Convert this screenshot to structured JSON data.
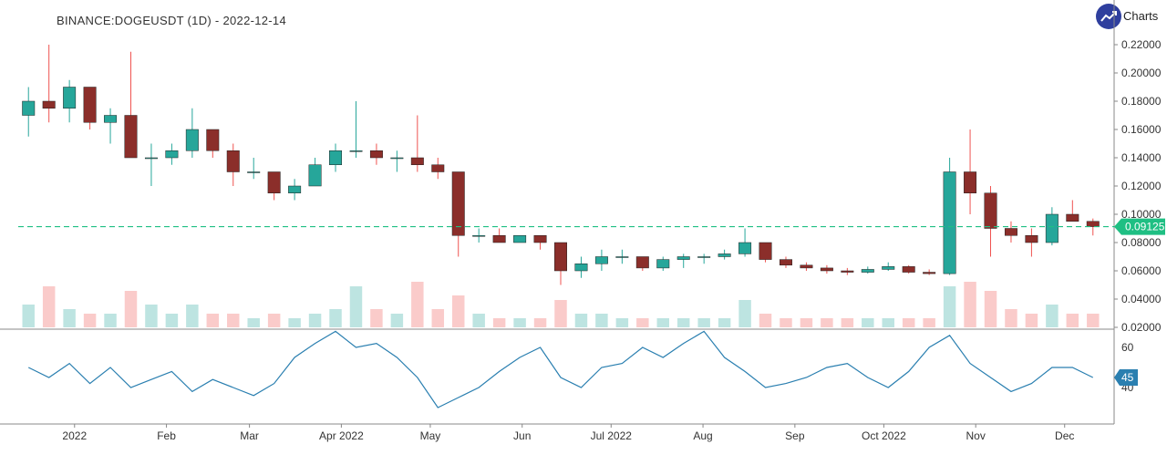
{
  "header": {
    "title": "BINANCE:DOGEUSDT (1D) - 2022-12-14",
    "brand": "Charts",
    "logo_icon": "trend-up-icon"
  },
  "chart_data": {
    "type": "candlestick",
    "symbol": "DOGEUSDT",
    "interval": "1W approx. of 1D",
    "start_date": "2021-12-13",
    "end_date": "2022-12-14",
    "price_ylim": [
      0.02,
      0.23
    ],
    "price_ticks": [
      "0.22000",
      "0.20000",
      "0.18000",
      "0.16000",
      "0.14000",
      "0.12000",
      "0.10000",
      "0.08000",
      "0.06000",
      "0.04000",
      "0.02000"
    ],
    "last_price": 0.09125,
    "last_price_label": "0.09125",
    "colors": {
      "up": "#26a69a",
      "down": "#ef5350",
      "last": "#1fbf83",
      "rsi": "#2a7fb0"
    },
    "candles": [
      [
        0.17,
        0.19,
        0.155,
        0.18
      ],
      [
        0.18,
        0.22,
        0.165,
        0.175
      ],
      [
        0.175,
        0.195,
        0.165,
        0.19
      ],
      [
        0.19,
        0.19,
        0.16,
        0.165
      ],
      [
        0.165,
        0.175,
        0.15,
        0.17
      ],
      [
        0.17,
        0.215,
        0.14,
        0.14
      ],
      [
        0.14,
        0.15,
        0.12,
        0.14
      ],
      [
        0.14,
        0.15,
        0.135,
        0.145
      ],
      [
        0.145,
        0.175,
        0.14,
        0.16
      ],
      [
        0.16,
        0.16,
        0.14,
        0.145
      ],
      [
        0.145,
        0.15,
        0.12,
        0.13
      ],
      [
        0.13,
        0.14,
        0.125,
        0.13
      ],
      [
        0.13,
        0.13,
        0.11,
        0.115
      ],
      [
        0.115,
        0.125,
        0.11,
        0.12
      ],
      [
        0.12,
        0.14,
        0.12,
        0.135
      ],
      [
        0.135,
        0.15,
        0.13,
        0.145
      ],
      [
        0.145,
        0.18,
        0.14,
        0.145
      ],
      [
        0.145,
        0.15,
        0.135,
        0.14
      ],
      [
        0.14,
        0.145,
        0.13,
        0.14
      ],
      [
        0.14,
        0.17,
        0.13,
        0.135
      ],
      [
        0.135,
        0.14,
        0.125,
        0.13
      ],
      [
        0.13,
        0.13,
        0.07,
        0.085
      ],
      [
        0.085,
        0.09,
        0.08,
        0.085
      ],
      [
        0.085,
        0.09,
        0.08,
        0.08
      ],
      [
        0.08,
        0.085,
        0.08,
        0.085
      ],
      [
        0.085,
        0.085,
        0.075,
        0.08
      ],
      [
        0.08,
        0.08,
        0.05,
        0.06
      ],
      [
        0.06,
        0.07,
        0.055,
        0.065
      ],
      [
        0.065,
        0.075,
        0.06,
        0.07
      ],
      [
        0.07,
        0.075,
        0.065,
        0.07
      ],
      [
        0.07,
        0.07,
        0.06,
        0.062
      ],
      [
        0.062,
        0.07,
        0.06,
        0.068
      ],
      [
        0.068,
        0.072,
        0.062,
        0.07
      ],
      [
        0.07,
        0.072,
        0.065,
        0.07
      ],
      [
        0.07,
        0.075,
        0.068,
        0.072
      ],
      [
        0.072,
        0.09,
        0.07,
        0.08
      ],
      [
        0.08,
        0.08,
        0.066,
        0.068
      ],
      [
        0.068,
        0.07,
        0.062,
        0.064
      ],
      [
        0.064,
        0.066,
        0.06,
        0.062
      ],
      [
        0.062,
        0.064,
        0.058,
        0.06
      ],
      [
        0.06,
        0.062,
        0.057,
        0.059
      ],
      [
        0.059,
        0.063,
        0.058,
        0.061
      ],
      [
        0.061,
        0.066,
        0.06,
        0.063
      ],
      [
        0.063,
        0.064,
        0.058,
        0.059
      ],
      [
        0.059,
        0.061,
        0.057,
        0.058
      ],
      [
        0.058,
        0.14,
        0.057,
        0.13
      ],
      [
        0.13,
        0.16,
        0.1,
        0.115
      ],
      [
        0.115,
        0.12,
        0.07,
        0.09
      ],
      [
        0.09,
        0.095,
        0.08,
        0.085
      ],
      [
        0.085,
        0.09,
        0.07,
        0.08
      ],
      [
        0.08,
        0.105,
        0.078,
        0.1
      ],
      [
        0.1,
        0.11,
        0.095,
        0.095
      ],
      [
        0.095,
        0.097,
        0.085,
        0.09125
      ]
    ],
    "volume_relative": [
      0.5,
      0.9,
      0.4,
      0.3,
      0.3,
      0.8,
      0.5,
      0.3,
      0.5,
      0.3,
      0.3,
      0.2,
      0.3,
      0.2,
      0.3,
      0.4,
      0.9,
      0.4,
      0.3,
      1.0,
      0.4,
      0.7,
      0.3,
      0.2,
      0.2,
      0.2,
      0.6,
      0.3,
      0.3,
      0.2,
      0.2,
      0.2,
      0.2,
      0.2,
      0.2,
      0.6,
      0.3,
      0.2,
      0.2,
      0.2,
      0.2,
      0.2,
      0.2,
      0.2,
      0.2,
      0.9,
      1.0,
      0.8,
      0.4,
      0.3,
      0.5,
      0.3,
      0.3
    ],
    "rsi": {
      "label": "45",
      "ticks": [
        "60",
        "40"
      ],
      "ylim": [
        22,
        72
      ],
      "values": [
        50,
        45,
        52,
        42,
        50,
        40,
        44,
        48,
        38,
        44,
        40,
        36,
        42,
        55,
        62,
        68,
        60,
        62,
        55,
        45,
        30,
        35,
        40,
        48,
        55,
        60,
        45,
        40,
        50,
        52,
        60,
        55,
        62,
        68,
        55,
        48,
        40,
        42,
        45,
        50,
        52,
        45,
        40,
        48,
        60,
        66,
        52,
        45,
        38,
        42,
        50,
        50,
        45
      ]
    },
    "x_ticks": [
      {
        "date": "2022-01-01",
        "label": "2022"
      },
      {
        "date": "2022-02-01",
        "label": "Feb"
      },
      {
        "date": "2022-03-01",
        "label": "Mar"
      },
      {
        "date": "2022-04-01",
        "label": "Apr 2022"
      },
      {
        "date": "2022-05-01",
        "label": "May"
      },
      {
        "date": "2022-06-01",
        "label": "Jun"
      },
      {
        "date": "2022-07-01",
        "label": "Jul 2022"
      },
      {
        "date": "2022-08-01",
        "label": "Aug"
      },
      {
        "date": "2022-09-01",
        "label": "Sep"
      },
      {
        "date": "2022-10-01",
        "label": "Oct 2022"
      },
      {
        "date": "2022-11-01",
        "label": "Nov"
      },
      {
        "date": "2022-12-01",
        "label": "Dec"
      }
    ]
  }
}
